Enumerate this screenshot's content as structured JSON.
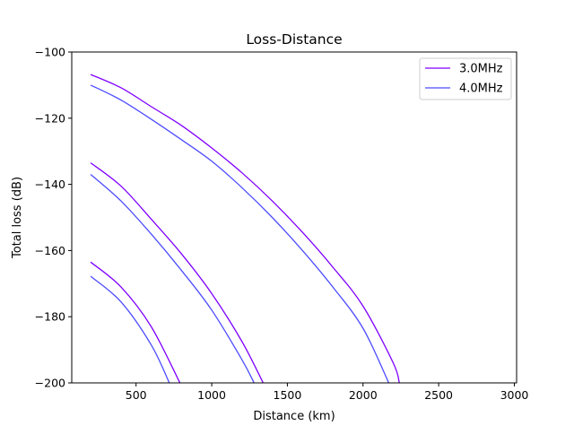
{
  "chart_data": {
    "type": "line",
    "title": "Loss-Distance",
    "xlabel": "Distance (km)",
    "ylabel": "Total loss (dB)",
    "xlim": [
      75,
      3015
    ],
    "ylim": [
      -200,
      -100
    ],
    "xticks": [
      500,
      1000,
      1500,
      2000,
      2500,
      3000
    ],
    "yticks": [
      -200,
      -180,
      -160,
      -140,
      -120,
      -100
    ],
    "xtick_labels": [
      "500",
      "1000",
      "1500",
      "2000",
      "2500",
      "3000"
    ],
    "ytick_labels": [
      "−200",
      "−180",
      "−160",
      "−140",
      "−120",
      "−100"
    ],
    "grid": false,
    "legend": {
      "position": "top-right",
      "entries": [
        {
          "label": "3.0MHz",
          "color": "#7f00ff"
        },
        {
          "label": "4.0MHz",
          "color": "#4c4cff"
        }
      ]
    },
    "series": [
      {
        "name": "3.0MHz",
        "color": "#7f00ff",
        "curves": [
          {
            "x": [
              200,
              400,
              600,
              800,
              1000,
              1200,
              1400,
              1600,
              1800,
              2000,
              2200,
              2240
            ],
            "y": [
              -106.8,
              -110.8,
              -116.5,
              -122.2,
              -129.0,
              -136.5,
              -145.0,
              -154.5,
              -165.0,
              -176.8,
              -194.0,
              -200
            ]
          },
          {
            "x": [
              200,
              400,
              600,
              800,
              1000,
              1200,
              1340
            ],
            "y": [
              -133.5,
              -140.5,
              -150.5,
              -161.0,
              -173.0,
              -187.5,
              -200
            ]
          },
          {
            "x": [
              200,
              400,
              600,
              790
            ],
            "y": [
              -163.5,
              -171.0,
              -183.0,
              -200
            ]
          }
        ]
      },
      {
        "name": "4.0MHz",
        "color": "#4c4cff",
        "curves": [
          {
            "x": [
              200,
              400,
              600,
              800,
              1000,
              1200,
              1400,
              1600,
              1800,
              2000,
              2170
            ],
            "y": [
              -110.0,
              -114.5,
              -120.3,
              -126.5,
              -133.0,
              -141.0,
              -150.0,
              -160.0,
              -171.0,
              -183.5,
              -200
            ]
          },
          {
            "x": [
              200,
              400,
              600,
              800,
              1000,
              1200,
              1280
            ],
            "y": [
              -137.0,
              -145.0,
              -155.0,
              -166.0,
              -178.0,
              -193.0,
              -200
            ]
          },
          {
            "x": [
              200,
              400,
              600,
              720
            ],
            "y": [
              -167.8,
              -175.5,
              -188.5,
              -200
            ]
          }
        ]
      }
    ]
  }
}
